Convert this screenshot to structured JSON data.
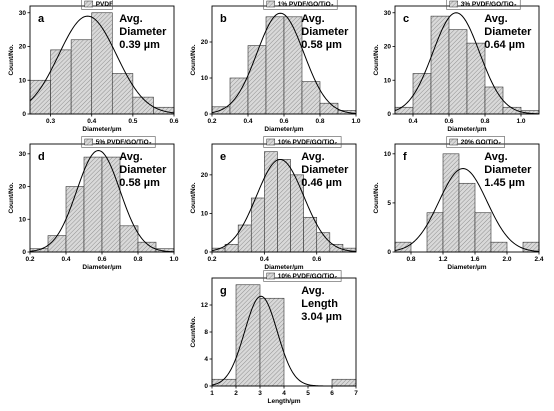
{
  "figure": {
    "colors": {
      "bar_fill_pattern": "diagonal hatch",
      "bar_stroke": "#333333",
      "curve": "#000000",
      "legend_border": "#555555"
    }
  },
  "chart_data": [
    {
      "type": "bar",
      "panel": "a",
      "legend": "PVDF",
      "annotation": [
        "Avg.",
        "Diameter",
        "0.39 µm"
      ],
      "xlabel": "Diameter/µm",
      "ylabel": "Count/No.",
      "xlim": [
        0.25,
        0.6
      ],
      "ylim": [
        0,
        32
      ],
      "xticks": [
        "0.3",
        "0.4",
        "0.5",
        "0.6"
      ],
      "yticks": [
        "0",
        "10",
        "20",
        "30"
      ],
      "bin_edges": [
        0.25,
        0.3,
        0.35,
        0.4,
        0.45,
        0.5,
        0.55,
        0.6
      ],
      "counts": [
        10,
        19,
        22,
        30,
        12,
        5,
        2
      ],
      "fit": {
        "mean": 0.39,
        "sd": 0.07,
        "peak": 29
      }
    },
    {
      "type": "bar",
      "panel": "b",
      "legend": "1% PVDF/GO/TiO₂",
      "annotation": [
        "Avg.",
        "Diameter",
        "0.58 µm"
      ],
      "xlabel": "Diameter/µm",
      "ylabel": "Count/No.",
      "xlim": [
        0.2,
        1.0
      ],
      "ylim": [
        0,
        30
      ],
      "xticks": [
        "0.2",
        "0.4",
        "0.6",
        "0.8",
        "1.0"
      ],
      "yticks": [
        "0",
        "10",
        "20"
      ],
      "bin_edges": [
        0.2,
        0.3,
        0.4,
        0.5,
        0.6,
        0.7,
        0.8,
        0.9,
        1.0
      ],
      "counts": [
        2,
        10,
        19,
        27,
        27,
        9,
        3,
        1
      ],
      "fit": {
        "mean": 0.58,
        "sd": 0.13,
        "peak": 28
      }
    },
    {
      "type": "bar",
      "panel": "c",
      "legend": "3% PVDF/GO/TiO₂",
      "annotation": [
        "Avg.",
        "Diameter",
        "0.64 µm"
      ],
      "xlabel": "Diameter/µm",
      "ylabel": "Count/No.",
      "xlim": [
        0.3,
        1.1
      ],
      "ylim": [
        0,
        32
      ],
      "xticks": [
        "0.4",
        "0.6",
        "0.8",
        "1.0"
      ],
      "yticks": [
        "0",
        "10",
        "20",
        "30"
      ],
      "bin_edges": [
        0.3,
        0.4,
        0.5,
        0.6,
        0.7,
        0.8,
        0.9,
        1.0,
        1.1
      ],
      "counts": [
        2,
        12,
        29,
        25,
        21,
        8,
        2,
        1
      ],
      "fit": {
        "mean": 0.64,
        "sd": 0.13,
        "peak": 30
      }
    },
    {
      "type": "bar",
      "panel": "d",
      "legend": "5% PVDF/GO/TiO₂",
      "annotation": [
        "Avg.",
        "Diameter",
        "0.58 µm"
      ],
      "xlabel": "Diameter/µm",
      "ylabel": "Count/No.",
      "xlim": [
        0.2,
        1.0
      ],
      "ylim": [
        0,
        33
      ],
      "xticks": [
        "0.2",
        "0.4",
        "0.6",
        "0.8",
        "1.0"
      ],
      "yticks": [
        "0",
        "10",
        "20",
        "30"
      ],
      "bin_edges": [
        0.2,
        0.3,
        0.4,
        0.5,
        0.6,
        0.7,
        0.8,
        0.9,
        1.0
      ],
      "counts": [
        1,
        5,
        20,
        29,
        29,
        8,
        3,
        1
      ],
      "fit": {
        "mean": 0.58,
        "sd": 0.12,
        "peak": 31
      }
    },
    {
      "type": "bar",
      "panel": "e",
      "legend": "10% PVDF/GO/TiO₂",
      "annotation": [
        "Avg.",
        "Diameter",
        "0.46 µm"
      ],
      "xlabel": "Diameter/µm",
      "ylabel": "Count/No.",
      "xlim": [
        0.2,
        0.75
      ],
      "ylim": [
        0,
        28
      ],
      "xticks": [
        "0.2",
        "0.4",
        "0.6"
      ],
      "yticks": [
        "0",
        "10",
        "20"
      ],
      "bin_edges": [
        0.2,
        0.25,
        0.3,
        0.35,
        0.4,
        0.45,
        0.5,
        0.55,
        0.6,
        0.65,
        0.7,
        0.75
      ],
      "counts": [
        1,
        2,
        7,
        14,
        26,
        24,
        20,
        9,
        5,
        2,
        1
      ],
      "fit": {
        "mean": 0.46,
        "sd": 0.09,
        "peak": 24
      }
    },
    {
      "type": "bar",
      "panel": "f",
      "legend": "20% GO/TiO₂",
      "annotation": [
        "Avg.",
        "Diameter",
        "1.45 µm"
      ],
      "xlabel": "Diameter/µm",
      "ylabel": "Count/No.",
      "xlim": [
        0.6,
        2.4
      ],
      "ylim": [
        0,
        11
      ],
      "xticks": [
        "0.8",
        "1.2",
        "1.6",
        "2.0",
        "2.4"
      ],
      "yticks": [
        "0",
        "5",
        "10"
      ],
      "bin_edges": [
        0.6,
        0.8,
        1.0,
        1.2,
        1.4,
        1.6,
        1.8,
        2.0,
        2.2,
        2.4
      ],
      "counts": [
        1,
        0,
        4,
        10,
        7,
        4,
        1,
        0,
        1
      ],
      "fit": {
        "mean": 1.45,
        "sd": 0.3,
        "peak": 8.5
      }
    },
    {
      "type": "bar",
      "panel": "g",
      "legend": "10% PVDF/GO/TiO₂",
      "annotation": [
        "Avg.",
        "Length",
        "3.04 µm"
      ],
      "xlabel": "Length/µm",
      "ylabel": "Count/No.",
      "xlim": [
        1,
        7
      ],
      "ylim": [
        0,
        16
      ],
      "xticks": [
        "1",
        "2",
        "3",
        "4",
        "5",
        "6",
        "7"
      ],
      "yticks": [
        "0",
        "4",
        "8",
        "12"
      ],
      "bin_edges": [
        1,
        2,
        3,
        4,
        5,
        6,
        7
      ],
      "counts": [
        1,
        15,
        13,
        0,
        0,
        1
      ],
      "fit": {
        "mean": 3.04,
        "sd": 0.68,
        "peak": 13.3
      }
    }
  ]
}
